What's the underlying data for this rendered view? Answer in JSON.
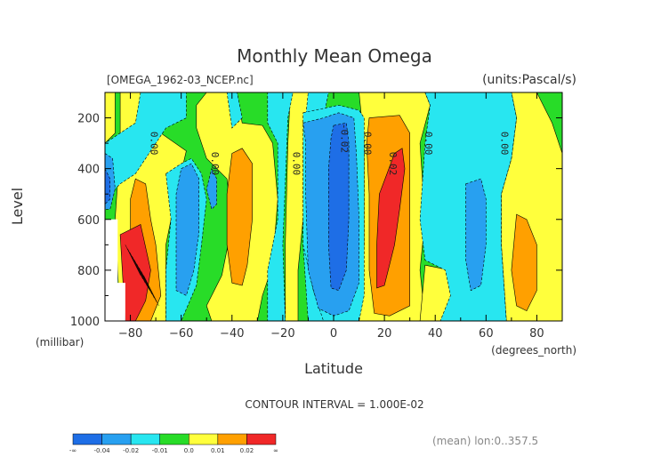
{
  "chart_data": {
    "type": "heatmap",
    "title": "Monthly Mean Omega",
    "file_label": "[OMEGA_1962-03_NCEP.nc]",
    "units_label": "(units:Pascal/s)",
    "xlabel": "Latitude",
    "x_unit_label": "(degrees_north)",
    "ylabel": "Level",
    "y_unit_label": "(millibar)",
    "xlim": [
      -90,
      90
    ],
    "ylim": [
      1000,
      100
    ],
    "x_ticks": [
      -80,
      -60,
      -40,
      -20,
      0,
      20,
      40,
      60,
      80
    ],
    "y_ticks": [
      200,
      400,
      600,
      800,
      1000
    ],
    "contour_interval_text": "CONTOUR INTERVAL = 1.000E-02",
    "footer_text": "(mean) lon:0..357.5",
    "contour_labels": [
      {
        "text": "0.00",
        "x": -72,
        "y": 300
      },
      {
        "text": "0.00",
        "x": -48,
        "y": 380
      },
      {
        "text": "0.00",
        "x": -16,
        "y": 380
      },
      {
        "text": "-0.02",
        "x": 3,
        "y": 280
      },
      {
        "text": "0.00",
        "x": 12,
        "y": 300
      },
      {
        "text": "0.02",
        "x": 22,
        "y": 380
      },
      {
        "text": "0.00",
        "x": 36,
        "y": 300
      },
      {
        "text": "0.00",
        "x": 66,
        "y": 300
      }
    ],
    "legend": {
      "labels": [
        "-∞",
        "-0.04",
        "-0.02",
        "-0.01",
        "0.0",
        "0.01",
        "0.02",
        "∞"
      ],
      "colors": [
        "#1e6ee6",
        "#28a0f0",
        "#28e6f0",
        "#28dc28",
        "#ffff3c",
        "#ffa000",
        "#f02828"
      ]
    },
    "regions": [
      {
        "level": 0,
        "pts": [
          [
            -90,
            100
          ],
          [
            90,
            100
          ],
          [
            90,
            1000
          ],
          [
            -90,
            1000
          ]
        ]
      },
      {
        "level": 1,
        "pts": [
          [
            -84,
            100
          ],
          [
            -70,
            100
          ],
          [
            -68,
            260
          ],
          [
            -58,
            330
          ],
          [
            -62,
            500
          ],
          [
            -66,
            700
          ],
          [
            -66,
            1000
          ],
          [
            -84,
            1000
          ],
          [
            -86,
            600
          ],
          [
            -84,
            300
          ]
        ]
      },
      {
        "level": 1,
        "pts": [
          [
            -50,
            100
          ],
          [
            -38,
            100
          ],
          [
            -36,
            220
          ],
          [
            -28,
            230
          ],
          [
            -24,
            300
          ],
          [
            -22,
            520
          ],
          [
            -24,
            780
          ],
          [
            -28,
            900
          ],
          [
            -30,
            1000
          ],
          [
            -48,
            1000
          ],
          [
            -50,
            940
          ],
          [
            -44,
            820
          ],
          [
            -40,
            620
          ],
          [
            -42,
            440
          ],
          [
            -50,
            360
          ],
          [
            -54,
            240
          ],
          [
            -54,
            150
          ]
        ]
      },
      {
        "level": 1,
        "pts": [
          [
            -17,
            100
          ],
          [
            -8,
            100
          ],
          [
            -5,
            180
          ],
          [
            -10,
            300
          ],
          [
            -12,
            600
          ],
          [
            -14,
            800
          ],
          [
            -14,
            1000
          ],
          [
            -19,
            1000
          ],
          [
            -19,
            700
          ],
          [
            -18,
            300
          ]
        ]
      },
      {
        "level": 1,
        "pts": [
          [
            10,
            100
          ],
          [
            36,
            100
          ],
          [
            38,
            150
          ],
          [
            34,
            300
          ],
          [
            36,
            600
          ],
          [
            34,
            800
          ],
          [
            36,
            1000
          ],
          [
            10,
            1000
          ],
          [
            12,
            700
          ],
          [
            12,
            300
          ]
        ]
      },
      {
        "level": 1,
        "pts": [
          [
            36,
            780
          ],
          [
            46,
            800
          ],
          [
            48,
            920
          ],
          [
            42,
            1000
          ],
          [
            34,
            1000
          ]
        ]
      },
      {
        "level": 1,
        "pts": [
          [
            70,
            100
          ],
          [
            80,
            100
          ],
          [
            86,
            220
          ],
          [
            90,
            340
          ],
          [
            90,
            1000
          ],
          [
            68,
            1000
          ],
          [
            66,
            700
          ],
          [
            66,
            500
          ],
          [
            70,
            360
          ],
          [
            72,
            200
          ]
        ]
      },
      {
        "level": 1,
        "pts": [
          [
            -90,
            100
          ],
          [
            -86,
            100
          ],
          [
            -86,
            260
          ],
          [
            -90,
            300
          ]
        ]
      },
      {
        "level": 2,
        "pts": [
          [
            -78,
            440
          ],
          [
            -74,
            460
          ],
          [
            -72,
            600
          ],
          [
            -70,
            700
          ],
          [
            -68,
            900
          ],
          [
            -72,
            1000
          ],
          [
            -80,
            1000
          ],
          [
            -82,
            850
          ],
          [
            -80,
            700
          ],
          [
            -80,
            520
          ]
        ]
      },
      {
        "level": 2,
        "pts": [
          [
            -40,
            340
          ],
          [
            -36,
            320
          ],
          [
            -32,
            380
          ],
          [
            -32,
            600
          ],
          [
            -34,
            780
          ],
          [
            -36,
            860
          ],
          [
            -40,
            850
          ],
          [
            -42,
            700
          ],
          [
            -42,
            500
          ]
        ]
      },
      {
        "level": 2,
        "pts": [
          [
            14,
            200
          ],
          [
            26,
            190
          ],
          [
            30,
            260
          ],
          [
            30,
            500
          ],
          [
            30,
            800
          ],
          [
            30,
            940
          ],
          [
            22,
            980
          ],
          [
            16,
            970
          ],
          [
            14,
            800
          ],
          [
            14,
            500
          ],
          [
            13,
            300
          ]
        ]
      },
      {
        "level": 2,
        "pts": [
          [
            72,
            580
          ],
          [
            76,
            600
          ],
          [
            80,
            700
          ],
          [
            80,
            880
          ],
          [
            76,
            960
          ],
          [
            72,
            940
          ],
          [
            70,
            800
          ]
        ]
      },
      {
        "level": 3,
        "pts": [
          [
            -84,
            660
          ],
          [
            -76,
            620
          ],
          [
            -72,
            800
          ],
          [
            -74,
            920
          ],
          [
            -78,
            1000
          ],
          [
            -82,
            1000
          ]
        ]
      },
      {
        "level": 3,
        "pts": [
          [
            21,
            420
          ],
          [
            24,
            340
          ],
          [
            27,
            320
          ],
          [
            28,
            400
          ],
          [
            26,
            560
          ],
          [
            24,
            700
          ],
          [
            20,
            860
          ],
          [
            17,
            870
          ],
          [
            17,
            700
          ],
          [
            18,
            500
          ]
        ]
      },
      {
        "level": -1,
        "pts": [
          [
            -76,
            100
          ],
          [
            -58,
            100
          ],
          [
            -58,
            200
          ],
          [
            -66,
            240
          ],
          [
            -70,
            300
          ],
          [
            -74,
            360
          ],
          [
            -78,
            420
          ],
          [
            -84,
            460
          ],
          [
            -88,
            500
          ],
          [
            -90,
            500
          ],
          [
            -90,
            300
          ],
          [
            -84,
            260
          ],
          [
            -78,
            220
          ]
        ]
      },
      {
        "level": -1,
        "pts": [
          [
            -66,
            420
          ],
          [
            -60,
            380
          ],
          [
            -56,
            360
          ],
          [
            -52,
            420
          ],
          [
            -50,
            520
          ],
          [
            -52,
            700
          ],
          [
            -54,
            860
          ],
          [
            -60,
            1000
          ],
          [
            -66,
            1000
          ],
          [
            -66,
            800
          ],
          [
            -64,
            600
          ]
        ]
      },
      {
        "level": -1,
        "pts": [
          [
            -26,
            100
          ],
          [
            -16,
            100
          ],
          [
            -18,
            200
          ],
          [
            -20,
            700
          ],
          [
            -19,
            1000
          ],
          [
            -26,
            1000
          ],
          [
            -26,
            800
          ],
          [
            -22,
            600
          ],
          [
            -22,
            300
          ],
          [
            -26,
            220
          ]
        ]
      },
      {
        "level": -1,
        "pts": [
          [
            -10,
            100
          ],
          [
            -2,
            100
          ],
          [
            -4,
            200
          ],
          [
            -8,
            260
          ],
          [
            -8,
            600
          ],
          [
            -6,
            800
          ],
          [
            -4,
            1000
          ],
          [
            -10,
            1000
          ],
          [
            -12,
            700
          ],
          [
            -12,
            300
          ]
        ]
      },
      {
        "level": -1,
        "pts": [
          [
            -12,
            180
          ],
          [
            2,
            150
          ],
          [
            10,
            170
          ],
          [
            12,
            200
          ],
          [
            12,
            600
          ],
          [
            12,
            900
          ],
          [
            10,
            1000
          ],
          [
            -4,
            1000
          ],
          [
            -8,
            880
          ],
          [
            -12,
            700
          ],
          [
            -12,
            400
          ]
        ]
      },
      {
        "level": -1,
        "pts": [
          [
            36,
            100
          ],
          [
            70,
            100
          ],
          [
            72,
            200
          ],
          [
            70,
            360
          ],
          [
            66,
            500
          ],
          [
            66,
            700
          ],
          [
            68,
            1000
          ],
          [
            42,
            1000
          ],
          [
            46,
            900
          ],
          [
            44,
            800
          ],
          [
            36,
            760
          ],
          [
            34,
            600
          ],
          [
            36,
            300
          ],
          [
            38,
            150
          ]
        ]
      },
      {
        "level": -1,
        "pts": [
          [
            -42,
            100
          ],
          [
            -38,
            100
          ],
          [
            -36,
            200
          ],
          [
            -40,
            240
          ]
        ]
      },
      {
        "level": -2,
        "pts": [
          [
            -12,
            220
          ],
          [
            -4,
            200
          ],
          [
            2,
            180
          ],
          [
            8,
            200
          ],
          [
            9,
            350
          ],
          [
            10,
            600
          ],
          [
            10,
            850
          ],
          [
            6,
            960
          ],
          [
            0,
            980
          ],
          [
            -6,
            950
          ],
          [
            -10,
            800
          ],
          [
            -11,
            500
          ],
          [
            -11,
            300
          ]
        ]
      },
      {
        "level": -2,
        "pts": [
          [
            -60,
            400
          ],
          [
            -56,
            380
          ],
          [
            -53,
            440
          ],
          [
            -53,
            650
          ],
          [
            -55,
            800
          ],
          [
            -58,
            900
          ],
          [
            -62,
            880
          ],
          [
            -62,
            700
          ],
          [
            -62,
            500
          ]
        ]
      },
      {
        "level": -2,
        "pts": [
          [
            -48,
            400
          ],
          [
            -46,
            440
          ],
          [
            -46,
            540
          ],
          [
            -48,
            560
          ],
          [
            -50,
            480
          ]
        ]
      },
      {
        "level": -2,
        "pts": [
          [
            52,
            460
          ],
          [
            58,
            440
          ],
          [
            60,
            520
          ],
          [
            60,
            700
          ],
          [
            58,
            860
          ],
          [
            54,
            880
          ],
          [
            52,
            760
          ],
          [
            52,
            600
          ]
        ]
      },
      {
        "level": -2,
        "pts": [
          [
            -90,
            340
          ],
          [
            -87,
            360
          ],
          [
            -86,
            480
          ],
          [
            -88,
            560
          ],
          [
            -90,
            560
          ]
        ]
      },
      {
        "level": -3,
        "pts": [
          [
            0,
            230
          ],
          [
            5,
            220
          ],
          [
            6,
            300
          ],
          [
            6,
            600
          ],
          [
            5,
            800
          ],
          [
            2,
            880
          ],
          [
            -1,
            870
          ],
          [
            -2,
            700
          ],
          [
            -2,
            400
          ],
          [
            -1,
            280
          ]
        ]
      },
      {
        "level": -3,
        "pts": [
          [
            -90,
            400
          ],
          [
            -88,
            440
          ],
          [
            -88,
            520
          ],
          [
            -90,
            540
          ]
        ]
      }
    ]
  }
}
